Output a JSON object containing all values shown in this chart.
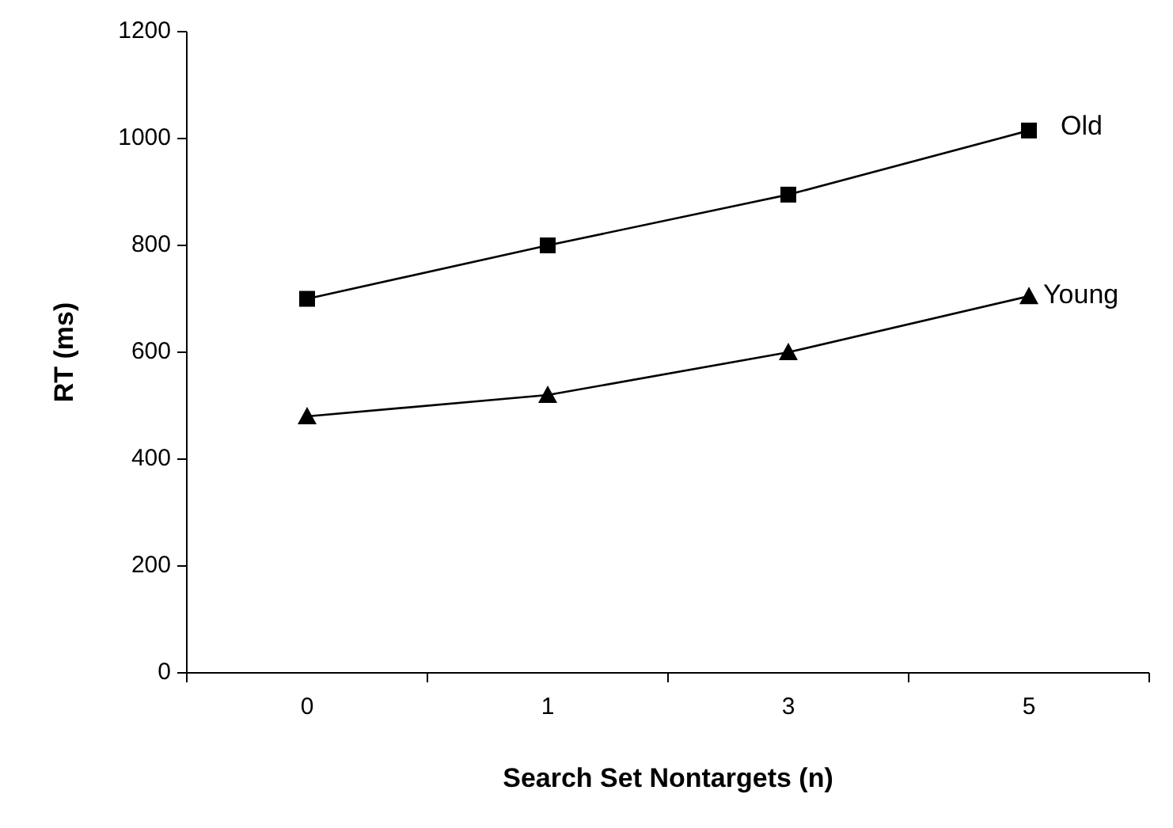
{
  "chart_data": {
    "type": "line",
    "xlabel": "Search Set Nontargets (n)",
    "ylabel": "RT (ms)",
    "categories": [
      "0",
      "1",
      "3",
      "5"
    ],
    "ylim": [
      0,
      1200
    ],
    "yticks": [
      0,
      200,
      400,
      600,
      800,
      1000,
      1200
    ],
    "grid": false,
    "line_style": "solid",
    "series": [
      {
        "name": "Old",
        "color": "#000000",
        "marker": "square",
        "values": [
          700,
          800,
          895,
          1015
        ]
      },
      {
        "name": "Young",
        "color": "#000000",
        "marker": "triangle",
        "values": [
          480,
          520,
          600,
          705
        ]
      }
    ]
  }
}
